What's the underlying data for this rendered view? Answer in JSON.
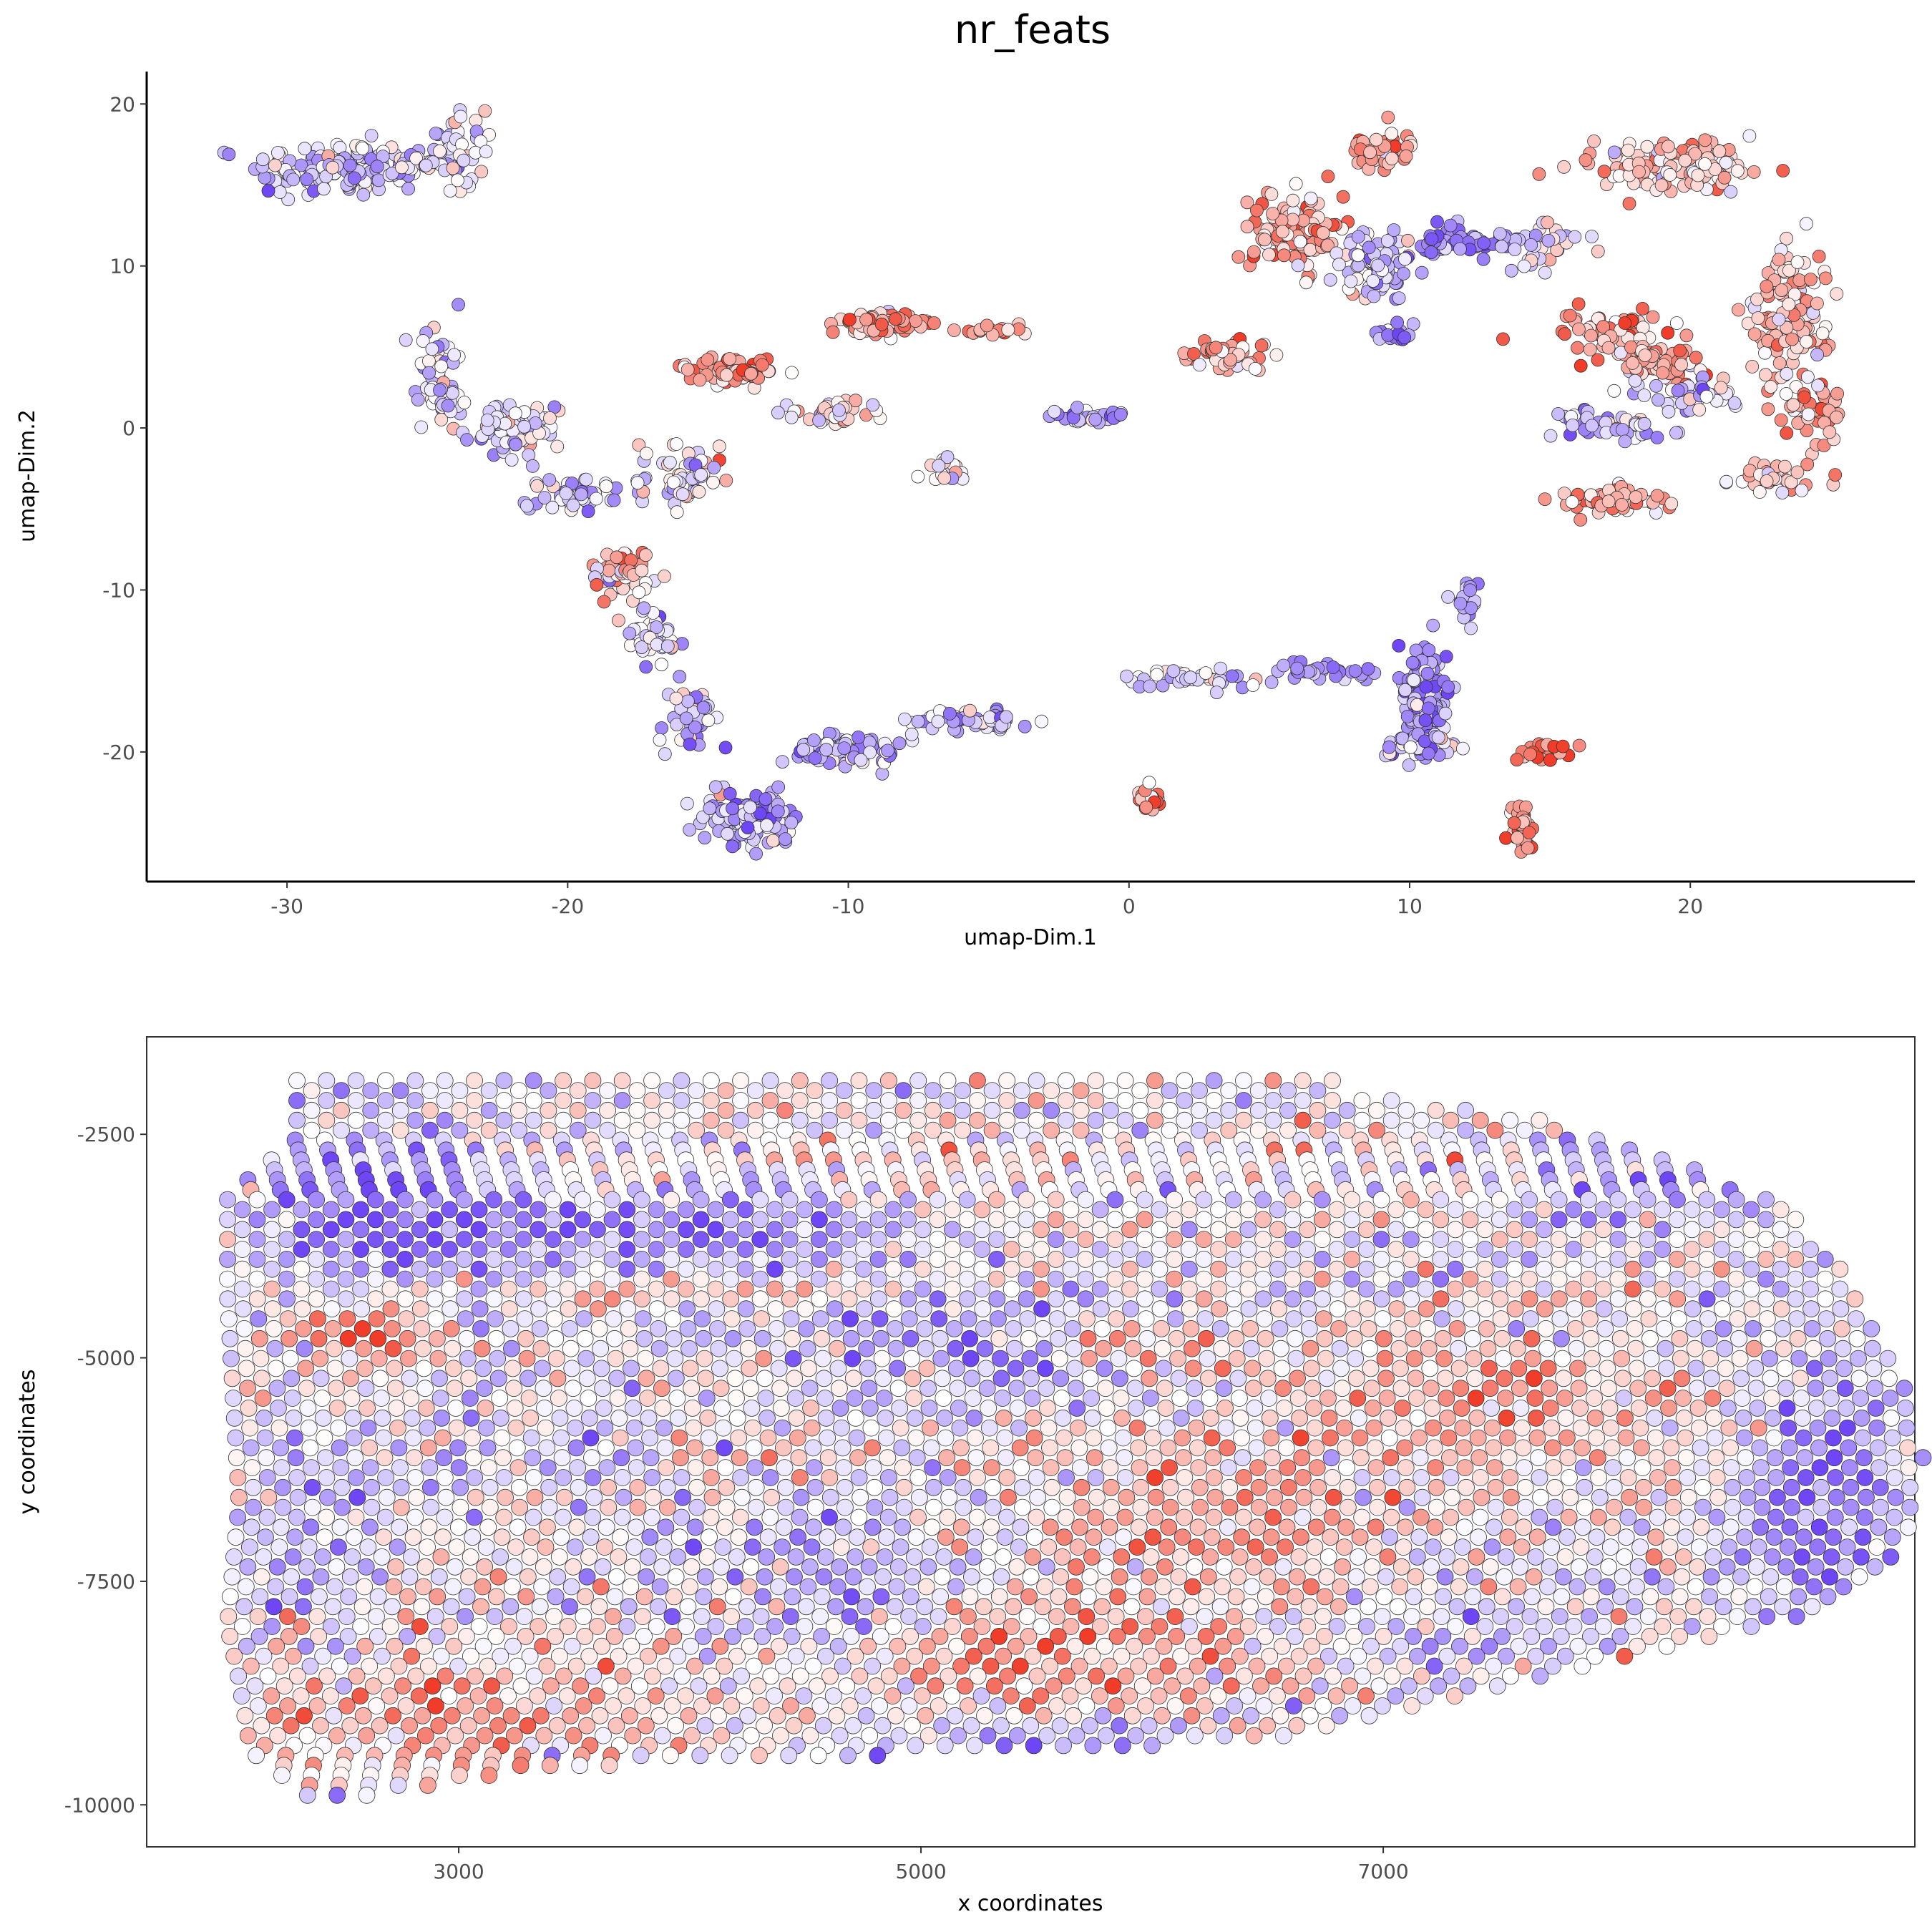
{
  "title": "nr_feats",
  "colors": {
    "low": "#0000ff",
    "mid": "#ffffff",
    "high": "#ff0000",
    "point_stroke": "#333333",
    "axis": "#000000",
    "tick_text": "#4d4d4d",
    "panel_border": "#333333"
  },
  "chart_data": [
    {
      "type": "scatter",
      "name": "umap",
      "xlabel": "umap-Dim.1",
      "ylabel": "umap-Dim.2",
      "xlim": [
        -35,
        28
      ],
      "ylim": [
        -28,
        22
      ],
      "xticks": [
        -30,
        -20,
        -10,
        0,
        10,
        20
      ],
      "xtick_labels": [
        "-30",
        "-20",
        "-10",
        "0",
        "10",
        "20"
      ],
      "yticks": [
        20,
        10,
        0,
        -10,
        -20
      ],
      "ytick_labels": [
        "20",
        "10",
        "0",
        "-10",
        "-20"
      ],
      "grid": false,
      "legend": "none",
      "color_scale": "diverging blue-white-red, value -1 (blue) to 1 (red)",
      "clusters": [
        {
          "x": -28,
          "y": 16,
          "sx": 3.0,
          "sy": 1.6,
          "n": 160,
          "color": -0.25
        },
        {
          "x": -24,
          "y": 17,
          "sx": 1.4,
          "sy": 2.0,
          "n": 60,
          "color": -0.2
        },
        {
          "x": -24.5,
          "y": 3,
          "sx": 0.8,
          "sy": 3.0,
          "n": 55,
          "color": -0.3
        },
        {
          "x": -22,
          "y": 0,
          "sx": 1.4,
          "sy": 1.3,
          "n": 80,
          "color": -0.1
        },
        {
          "x": -20,
          "y": -4,
          "sx": 1.5,
          "sy": 1.0,
          "n": 45,
          "color": -0.35
        },
        {
          "x": -18,
          "y": -9,
          "sx": 0.9,
          "sy": 1.5,
          "n": 55,
          "color": 0.25
        },
        {
          "x": -17,
          "y": -13,
          "sx": 0.9,
          "sy": 1.8,
          "n": 45,
          "color": -0.2
        },
        {
          "x": -15.5,
          "y": -18,
          "sx": 0.9,
          "sy": 2.0,
          "n": 45,
          "color": -0.35
        },
        {
          "x": -13.5,
          "y": -24,
          "sx": 1.6,
          "sy": 1.5,
          "n": 120,
          "color": -0.45
        },
        {
          "x": -10,
          "y": -20,
          "sx": 2.0,
          "sy": 1.0,
          "n": 80,
          "color": -0.35
        },
        {
          "x": -5.5,
          "y": -18,
          "sx": 2.0,
          "sy": 0.7,
          "n": 55,
          "color": -0.3
        },
        {
          "x": -16,
          "y": -3,
          "sx": 1.3,
          "sy": 2.2,
          "n": 55,
          "color": 0.05
        },
        {
          "x": -14,
          "y": 3.5,
          "sx": 1.5,
          "sy": 0.7,
          "n": 70,
          "color": 0.45
        },
        {
          "x": -10.5,
          "y": 1,
          "sx": 1.8,
          "sy": 0.7,
          "n": 40,
          "color": 0.1
        },
        {
          "x": -9,
          "y": 6.5,
          "sx": 1.3,
          "sy": 0.6,
          "n": 70,
          "color": 0.5
        },
        {
          "x": -5,
          "y": 6,
          "sx": 1.3,
          "sy": 0.3,
          "n": 16,
          "color": 0.5
        },
        {
          "x": -6.5,
          "y": -2.5,
          "sx": 0.7,
          "sy": 0.7,
          "n": 22,
          "color": 0.05
        },
        {
          "x": -1.5,
          "y": 0.7,
          "sx": 1.3,
          "sy": 0.4,
          "n": 30,
          "color": -0.5
        },
        {
          "x": 2.5,
          "y": -15.5,
          "sx": 2.2,
          "sy": 0.5,
          "n": 40,
          "color": -0.2
        },
        {
          "x": 7,
          "y": -15,
          "sx": 1.8,
          "sy": 0.4,
          "n": 30,
          "color": -0.5
        },
        {
          "x": 0.7,
          "y": -23,
          "sx": 0.4,
          "sy": 0.7,
          "n": 20,
          "color": 0.5
        },
        {
          "x": 10.5,
          "y": -16.5,
          "sx": 0.8,
          "sy": 3.0,
          "n": 140,
          "color": -0.55
        },
        {
          "x": 10.5,
          "y": -19.5,
          "sx": 1.3,
          "sy": 0.8,
          "n": 60,
          "color": -0.4
        },
        {
          "x": 12,
          "y": -11,
          "sx": 0.5,
          "sy": 2.0,
          "n": 18,
          "color": -0.45
        },
        {
          "x": 15,
          "y": -20,
          "sx": 0.8,
          "sy": 0.5,
          "n": 22,
          "color": 0.7
        },
        {
          "x": 14,
          "y": -24.5,
          "sx": 0.4,
          "sy": 1.3,
          "n": 45,
          "color": 0.65
        },
        {
          "x": 3.5,
          "y": 4.5,
          "sx": 1.5,
          "sy": 1.0,
          "n": 45,
          "color": 0.4
        },
        {
          "x": 6,
          "y": 12,
          "sx": 1.5,
          "sy": 2.2,
          "n": 120,
          "color": 0.4
        },
        {
          "x": 9,
          "y": 17,
          "sx": 1.0,
          "sy": 1.3,
          "n": 40,
          "color": 0.45
        },
        {
          "x": 9,
          "y": 10,
          "sx": 1.5,
          "sy": 1.8,
          "n": 90,
          "color": -0.3
        },
        {
          "x": 11.5,
          "y": 11.5,
          "sx": 1.3,
          "sy": 0.9,
          "n": 45,
          "color": -0.7
        },
        {
          "x": 9.5,
          "y": 5.8,
          "sx": 0.6,
          "sy": 0.5,
          "n": 22,
          "color": -0.6
        },
        {
          "x": 19.5,
          "y": 16,
          "sx": 2.6,
          "sy": 1.3,
          "n": 130,
          "color": 0.25
        },
        {
          "x": 23.5,
          "y": 7,
          "sx": 1.3,
          "sy": 4.0,
          "n": 130,
          "color": 0.25
        },
        {
          "x": 17,
          "y": 6,
          "sx": 2.0,
          "sy": 1.0,
          "n": 65,
          "color": 0.5
        },
        {
          "x": 19,
          "y": 4,
          "sx": 1.5,
          "sy": 1.0,
          "n": 70,
          "color": 0.35
        },
        {
          "x": 24.5,
          "y": 1,
          "sx": 0.8,
          "sy": 1.5,
          "n": 40,
          "color": 0.5
        },
        {
          "x": 20,
          "y": 2,
          "sx": 2.0,
          "sy": 1.0,
          "n": 40,
          "color": -0.2
        },
        {
          "x": 23,
          "y": -3,
          "sx": 1.5,
          "sy": 0.8,
          "n": 40,
          "color": 0.3
        },
        {
          "x": 17.5,
          "y": -4.5,
          "sx": 2.0,
          "sy": 0.8,
          "n": 55,
          "color": 0.3
        },
        {
          "x": 16.5,
          "y": 0.5,
          "sx": 1.0,
          "sy": 0.6,
          "n": 25,
          "color": -0.6
        },
        {
          "x": 18,
          "y": 0,
          "sx": 1.5,
          "sy": 0.6,
          "n": 30,
          "color": -0.3
        },
        {
          "x": 15,
          "y": 11,
          "sx": 1.5,
          "sy": 1.5,
          "n": 30,
          "color": -0.1
        },
        {
          "x": 13.5,
          "y": 11.5,
          "sx": 1.0,
          "sy": 0.5,
          "n": 15,
          "color": -0.6
        }
      ]
    },
    {
      "type": "scatter",
      "name": "spatial",
      "xlabel": "x coordinates",
      "ylabel": "y coordinates",
      "xlim": [
        1650,
        9300
      ],
      "ylim": [
        -10470,
        -1410
      ],
      "xticks": [
        3000,
        5000,
        7000
      ],
      "xtick_labels": [
        "3000",
        "5000",
        "7000"
      ],
      "yticks": [
        -2500,
        -5000,
        -7500,
        -10000
      ],
      "ytick_labels": [
        "-2500",
        "-5000",
        "-7500",
        "-10000"
      ],
      "grid": false,
      "legend": "none",
      "panel_border": true,
      "spot_spacing_x": 128,
      "spot_spacing_y": 222,
      "spot_outline_x": [
        [
          -2100,
          2300
        ],
        [
          -2550,
          2300
        ],
        [
          -3200,
          2000
        ],
        [
          -4300,
          2000
        ],
        [
          -6600,
          2050
        ],
        [
          -8000,
          2000
        ],
        [
          -8600,
          2050
        ],
        [
          -9400,
          2100
        ],
        [
          -9900,
          2350
        ]
      ],
      "spot_right_edge": [
        [
          -2000,
          6800
        ],
        [
          -2350,
          7700
        ],
        [
          -2700,
          8200
        ],
        [
          -3300,
          8750
        ],
        [
          -4000,
          9000
        ],
        [
          -4900,
          9200
        ],
        [
          -5500,
          9300
        ],
        [
          -6200,
          9350
        ],
        [
          -6900,
          9300
        ],
        [
          -7500,
          9150
        ],
        [
          -7900,
          8800
        ],
        [
          -8300,
          8200
        ],
        [
          -8700,
          7500
        ],
        [
          -9300,
          6500
        ],
        [
          -9600,
          3300
        ],
        [
          -9900,
          2600
        ]
      ],
      "top_y": -1900,
      "bottom_y": -9950,
      "value_regions": [
        {
          "x": 2600,
          "y": -3100,
          "rx": 600,
          "ry": 900,
          "v": -0.85
        },
        {
          "x": 3600,
          "y": -3900,
          "rx": 900,
          "ry": 500,
          "v": -0.7
        },
        {
          "x": 4200,
          "y": -3500,
          "rx": 700,
          "ry": 400,
          "v": -0.6
        },
        {
          "x": 3900,
          "y": -4200,
          "rx": 700,
          "ry": 200,
          "v": 0.9
        },
        {
          "x": 2600,
          "y": -4700,
          "rx": 300,
          "ry": 300,
          "v": 0.9
        },
        {
          "x": 5400,
          "y": -4900,
          "rx": 700,
          "ry": 700,
          "v": -0.6
        },
        {
          "x": 6000,
          "y": -4800,
          "rx": 400,
          "ry": 400,
          "v": 0.6
        },
        {
          "x": 8900,
          "y": -6500,
          "rx": 350,
          "ry": 1500,
          "v": -0.8
        },
        {
          "x": 8200,
          "y": -3100,
          "rx": 600,
          "ry": 500,
          "v": -0.5
        },
        {
          "x": 6400,
          "y": -6800,
          "rx": 800,
          "ry": 900,
          "v": 0.55
        },
        {
          "x": 5800,
          "y": -8400,
          "rx": 900,
          "ry": 600,
          "v": 0.6
        },
        {
          "x": 3000,
          "y": -9000,
          "rx": 800,
          "ry": 600,
          "v": 0.55
        },
        {
          "x": 5600,
          "y": -9300,
          "rx": 700,
          "ry": 300,
          "v": -0.7
        },
        {
          "x": 7200,
          "y": -8000,
          "rx": 600,
          "ry": 800,
          "v": -0.4
        },
        {
          "x": 4600,
          "y": -7400,
          "rx": 500,
          "ry": 700,
          "v": -0.55
        },
        {
          "x": 2300,
          "y": -6800,
          "rx": 400,
          "ry": 900,
          "v": -0.4
        },
        {
          "x": 7600,
          "y": -5500,
          "rx": 700,
          "ry": 800,
          "v": 0.45
        },
        {
          "x": 3400,
          "y": -6200,
          "rx": 600,
          "ry": 700,
          "v": -0.2
        }
      ]
    }
  ]
}
